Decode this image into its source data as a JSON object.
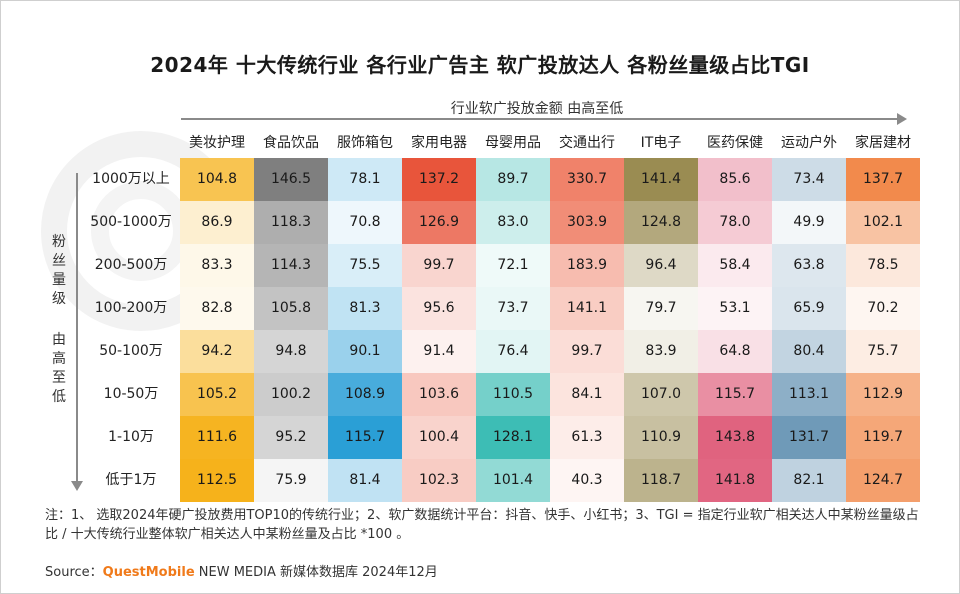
{
  "title": "2024年 十大传统行业 各行业广告主 软广投放达人 各粉丝量级占比TGI",
  "axis_horizontal_label": "行业软广投放金额  由高至低",
  "axis_vertical_label_1": "粉丝量级",
  "axis_vertical_label_2": "由高至低",
  "note": "注：1、 选取2024年硬广投放费用TOP10的传统行业；2、软广数据统计平台：抖音、快手、小红书；3、TGI = 指定行业软广相关达人中某粉丝量级占比 / 十大传统行业整体软广相关达人中某粉丝量及占比 *100 。",
  "source_prefix": "Source：",
  "source_brand": "QuestMobile",
  "source_rest": " NEW MEDIA 新媒体数据库 2024年12月",
  "colors": {
    "美妆护理": "#f6b21b",
    "食品饮品": "#7f7f7f",
    "服饰箱包": "#2a9fd6",
    "家用电器": "#e8553b",
    "母婴用品": "#3dbdb5",
    "交通出行": "#f0826a",
    "IT电子": "#9a8c52",
    "医药保健": "#e0637f",
    "运动户外": "#6f9ab8",
    "家居建材": "#f28a4c"
  },
  "chart_data": {
    "type": "heatmap",
    "title": "2024年 十大传统行业 各行业广告主 软广投放达人 各粉丝量级占比TGI",
    "xlabel": "行业软广投放金额  由高至低",
    "ylabel": "粉丝量级 由高至低",
    "columns": [
      "美妆护理",
      "食品饮品",
      "服饰箱包",
      "家用电器",
      "母婴用品",
      "交通出行",
      "IT电子",
      "医药保健",
      "运动户外",
      "家居建材"
    ],
    "rows": [
      "1000万以上",
      "500-1000万",
      "200-500万",
      "100-200万",
      "50-100万",
      "10-50万",
      "1-10万",
      "低于1万"
    ],
    "values": [
      [
        "104.8",
        "146.5",
        "78.1",
        "137.2",
        "89.7",
        "330.7",
        "141.4",
        "85.6",
        "73.4",
        "137.7"
      ],
      [
        "86.9",
        "118.3",
        "70.8",
        "126.9",
        "83.0",
        "303.9",
        "124.8",
        "78.0",
        "49.9",
        "102.1"
      ],
      [
        "83.3",
        "114.3",
        "75.5",
        "99.7",
        "72.1",
        "183.9",
        "96.4",
        "58.4",
        "63.8",
        "78.5"
      ],
      [
        "82.8",
        "105.8",
        "81.3",
        "95.6",
        "73.7",
        "141.1",
        "79.7",
        "53.1",
        "65.9",
        "70.2"
      ],
      [
        "94.2",
        "94.8",
        "90.1",
        "91.4",
        "76.4",
        "99.7",
        "83.9",
        "64.8",
        "80.4",
        "75.7"
      ],
      [
        "105.2",
        "100.2",
        "108.9",
        "103.6",
        "110.5",
        "84.1",
        "107.0",
        "115.7",
        "113.1",
        "112.9"
      ],
      [
        "111.6",
        "95.2",
        "115.7",
        "100.4",
        "128.1",
        "61.3",
        "110.9",
        "143.8",
        "131.7",
        "119.7"
      ],
      [
        "112.5",
        "75.9",
        "81.4",
        "102.3",
        "101.4",
        "40.3",
        "118.7",
        "141.8",
        "82.1",
        "124.7"
      ]
    ]
  }
}
